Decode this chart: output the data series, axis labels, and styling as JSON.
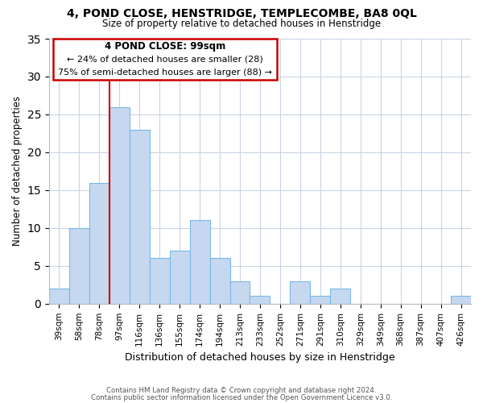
{
  "title": "4, POND CLOSE, HENSTRIDGE, TEMPLECOMBE, BA8 0QL",
  "subtitle": "Size of property relative to detached houses in Henstridge",
  "xlabel": "Distribution of detached houses by size in Henstridge",
  "ylabel": "Number of detached properties",
  "bar_color": "#c5d8f0",
  "bar_edge_color": "#7ab8e8",
  "background_color": "#ffffff",
  "grid_color": "#c8d4e4",
  "annotation_box_color": "#cc0000",
  "property_line_color": "#cc0000",
  "categories": [
    "39sqm",
    "58sqm",
    "78sqm",
    "97sqm",
    "116sqm",
    "136sqm",
    "155sqm",
    "174sqm",
    "194sqm",
    "213sqm",
    "233sqm",
    "252sqm",
    "271sqm",
    "291sqm",
    "310sqm",
    "329sqm",
    "349sqm",
    "368sqm",
    "387sqm",
    "407sqm",
    "426sqm"
  ],
  "values": [
    2,
    10,
    16,
    26,
    23,
    6,
    7,
    11,
    6,
    3,
    1,
    0,
    3,
    1,
    2,
    0,
    0,
    0,
    0,
    0,
    1
  ],
  "ylim": [
    0,
    35
  ],
  "yticks": [
    0,
    5,
    10,
    15,
    20,
    25,
    30,
    35
  ],
  "property_bin_index": 3,
  "annotation_title": "4 POND CLOSE: 99sqm",
  "annotation_line1": "← 24% of detached houses are smaller (28)",
  "annotation_line2": "75% of semi-detached houses are larger (88) →",
  "footnote1": "Contains HM Land Registry data © Crown copyright and database right 2024.",
  "footnote2": "Contains public sector information licensed under the Open Government Licence v3.0."
}
